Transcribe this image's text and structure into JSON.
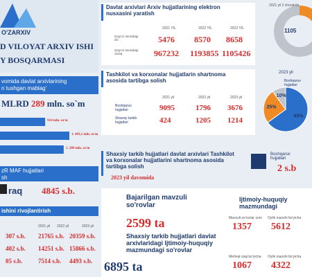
{
  "header": {
    "logo": "O'ZARXIV",
    "title_line1": "D VILOYAT ARXIV ISHI",
    "title_line2": "Y BOSQARMASI"
  },
  "revenue": {
    "caption_line1": "vomida davlat arxivlarining",
    "caption_line2": "n tushgan mablag'",
    "total_prefix": "MLRD",
    "total_value": "289",
    "total_unit": "mln. so`m",
    "chart": {
      "type": "bar",
      "color": "#2a6fc9",
      "values": [
        914,
        1403.1,
        1289
      ],
      "value_labels": [
        "914 mln. so'm",
        "1. 403,1 mln. so'm",
        "1. 289 mln. so'm"
      ]
    }
  },
  "maf": {
    "caption_line1": "zR MAF hujjatlari",
    "caption_line2": "sh",
    "unit_label": "raq",
    "value": "4845 s.b."
  },
  "development": {
    "caption": "ishini rivojlantirish",
    "years": [
      "2021 yil",
      "2022 yil",
      "2023 yil"
    ],
    "rows": [
      [
        "307 s.b.",
        "21765 s.b.",
        "20359 s.b."
      ],
      [
        "402 s.b.",
        "14251 s.b.",
        "15866 s.b."
      ],
      [
        "05 s.b.",
        "7514 s.b.",
        "4493 s.b."
      ]
    ]
  },
  "digitization": {
    "title": "Davlat arxivlari Arxiv hujjatlarining elektron nusxasini yaratish",
    "years": [
      "2021 YIL",
      "2022 YIL",
      "2023 YIL"
    ],
    "rows": [
      {
        "label": "Qog'oz asosidagi ish",
        "values": [
          "5476",
          "8570",
          "8658"
        ]
      },
      {
        "label": "Qog'oz asosidagi varaq",
        "values": [
          "967232",
          "1193855",
          "1105426"
        ]
      }
    ],
    "donut_legend": "2021 yil 2 chorakda",
    "donut_label": "1105"
  },
  "contracts": {
    "title": "Tashkilot va korxonalar hujjatlarin shartnoma asosida tartibga solish",
    "years": [
      "2021 yil",
      "2022 yil",
      "2023 yil"
    ],
    "rows": [
      {
        "label": "Boshqaruv hujjatlari",
        "values": [
          "9095",
          "1796",
          "3676"
        ]
      },
      {
        "label": "Shaxsiy tarkib hujjatlari",
        "values": [
          "424",
          "1205",
          "1214"
        ]
      }
    ],
    "pie": {
      "type": "pie",
      "legend": "2023 yil",
      "slice_label": "Boshqaruv hujjatlari",
      "values": [
        65,
        25,
        10
      ],
      "value_labels": [
        "65%",
        "25%",
        "10%"
      ],
      "colors": [
        "#2a6fc9",
        "#f08a24",
        "#bfc4cc"
      ]
    }
  },
  "personnel": {
    "title": "Shaxsiy tarkib hujjatlari davlat arxivlari Tashkilot va korxonalar hujjatlarini shartnoma asosida tartibga solish",
    "period": "2023 yil davomida",
    "box_label": "Boshqaruv hujjatlari",
    "box_value": "2 s.b"
  },
  "requests": {
    "thematic_title": "Bajarilgan mavzuli so'rovlar",
    "thematic_value": "2599 ta",
    "social_title": "Ijtimoiy-huquqiy mazmundagi",
    "social_items": [
      {
        "label": "Mavzuli so'rovlar soni",
        "value": "1357"
      },
      {
        "label": "Oylik maoshi bo'yicha",
        "value": "5612"
      }
    ],
    "archive_title": "Shaxsiy tarkib hujjatlari davlat arxivlaridagi Ijtimoiy-huquqiy mazmundagi so'rovlar",
    "archive_value": "6895 ta",
    "archive_items": [
      {
        "label": "Mehnat staji bo'yicha",
        "value": "1067"
      },
      {
        "label": "Oylik maoshi bo'yicha",
        "value": "4322"
      }
    ]
  }
}
